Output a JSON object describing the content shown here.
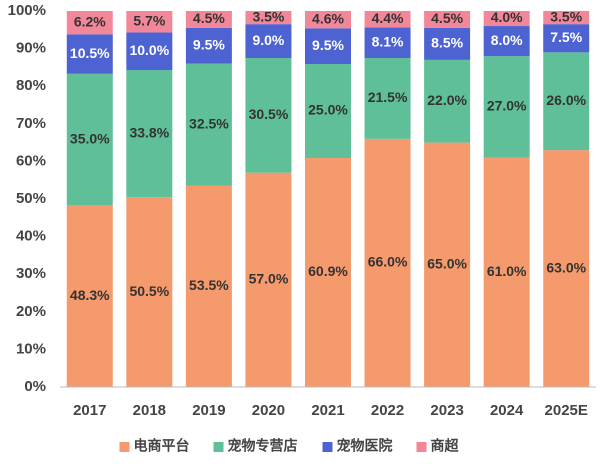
{
  "chart_data": {
    "type": "stacked_bar",
    "categories": [
      "2017",
      "2018",
      "2019",
      "2020",
      "2021",
      "2022",
      "2023",
      "2024",
      "2025E"
    ],
    "series": [
      {
        "name": "电商平台",
        "color": "#f59a6c",
        "values": [
          48.3,
          50.5,
          53.5,
          57.0,
          60.9,
          66.0,
          65.0,
          61.0,
          63.0
        ],
        "value_labels": [
          "48.3%",
          "50.5%",
          "53.5%",
          "57.0%",
          "60.9%",
          "66.0%",
          "65.0%",
          "61.0%",
          "63.0%"
        ]
      },
      {
        "name": "宠物专营店",
        "color": "#5fbf98",
        "values": [
          35.0,
          33.8,
          32.5,
          30.5,
          25.0,
          21.5,
          22.0,
          27.0,
          26.0
        ],
        "value_labels": [
          "35.0%",
          "33.8%",
          "32.5%",
          "30.5%",
          "25.0%",
          "21.5%",
          "22.0%",
          "27.0%",
          "26.0%"
        ]
      },
      {
        "name": "宠物医院",
        "color": "#4e63d2",
        "values": [
          10.5,
          10.0,
          9.5,
          9.0,
          9.5,
          8.1,
          8.5,
          8.0,
          7.5
        ],
        "value_labels": [
          "10.5%",
          "10.0%",
          "9.5%",
          "9.0%",
          "9.5%",
          "8.1%",
          "8.5%",
          "8.0%",
          "7.5%"
        ]
      },
      {
        "name": "商超",
        "color": "#f3879a",
        "values": [
          6.2,
          5.7,
          4.5,
          3.5,
          4.6,
          4.4,
          4.5,
          4.0,
          3.5
        ],
        "value_labels": [
          "6.2%",
          "5.7%",
          "4.5%",
          "3.5%",
          "4.6%",
          "4.4%",
          "4.5%",
          "4.0%",
          "3.5%"
        ]
      }
    ],
    "ylim": [
      0,
      100
    ],
    "yticks": [
      {
        "value": 0,
        "label": "0%"
      },
      {
        "value": 10,
        "label": "10%"
      },
      {
        "value": 20,
        "label": "20%"
      },
      {
        "value": 30,
        "label": "30%"
      },
      {
        "value": 40,
        "label": "40%"
      },
      {
        "value": 50,
        "label": "50%"
      },
      {
        "value": 60,
        "label": "60%"
      },
      {
        "value": 70,
        "label": "70%"
      },
      {
        "value": 80,
        "label": "80%"
      },
      {
        "value": 90,
        "label": "90%"
      },
      {
        "value": 100,
        "label": "100%"
      }
    ],
    "grid": false,
    "legend": "bottom"
  }
}
